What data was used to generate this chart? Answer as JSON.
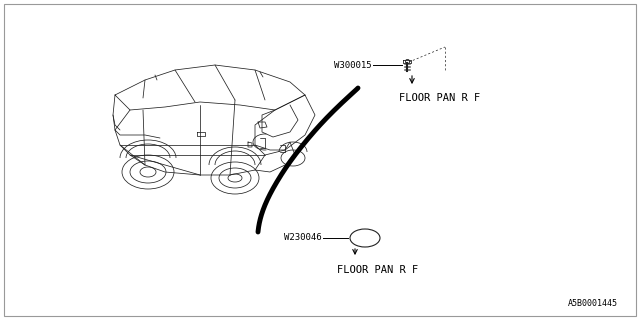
{
  "bg_color": "#ffffff",
  "text_color": "#000000",
  "diagram_part_number": "A5B0001445",
  "part1_label": "W300015",
  "part1_callout_label": "FLOOR PAN R F",
  "part2_label": "W230046",
  "part2_callout_label": "FLOOR PAN R F",
  "font_size_labels": 6.5,
  "font_size_callout": 7.5,
  "font_size_part_number": 6,
  "font_family": "monospace",
  "line_color": "#000000",
  "car_line_color": "#222222",
  "cable_color": "#000000",
  "cable_linewidth": 3.5,
  "car_linewidth": 0.55,
  "callout_linewidth": 0.6,
  "border_linewidth": 0.8,
  "border_color": "#999999"
}
